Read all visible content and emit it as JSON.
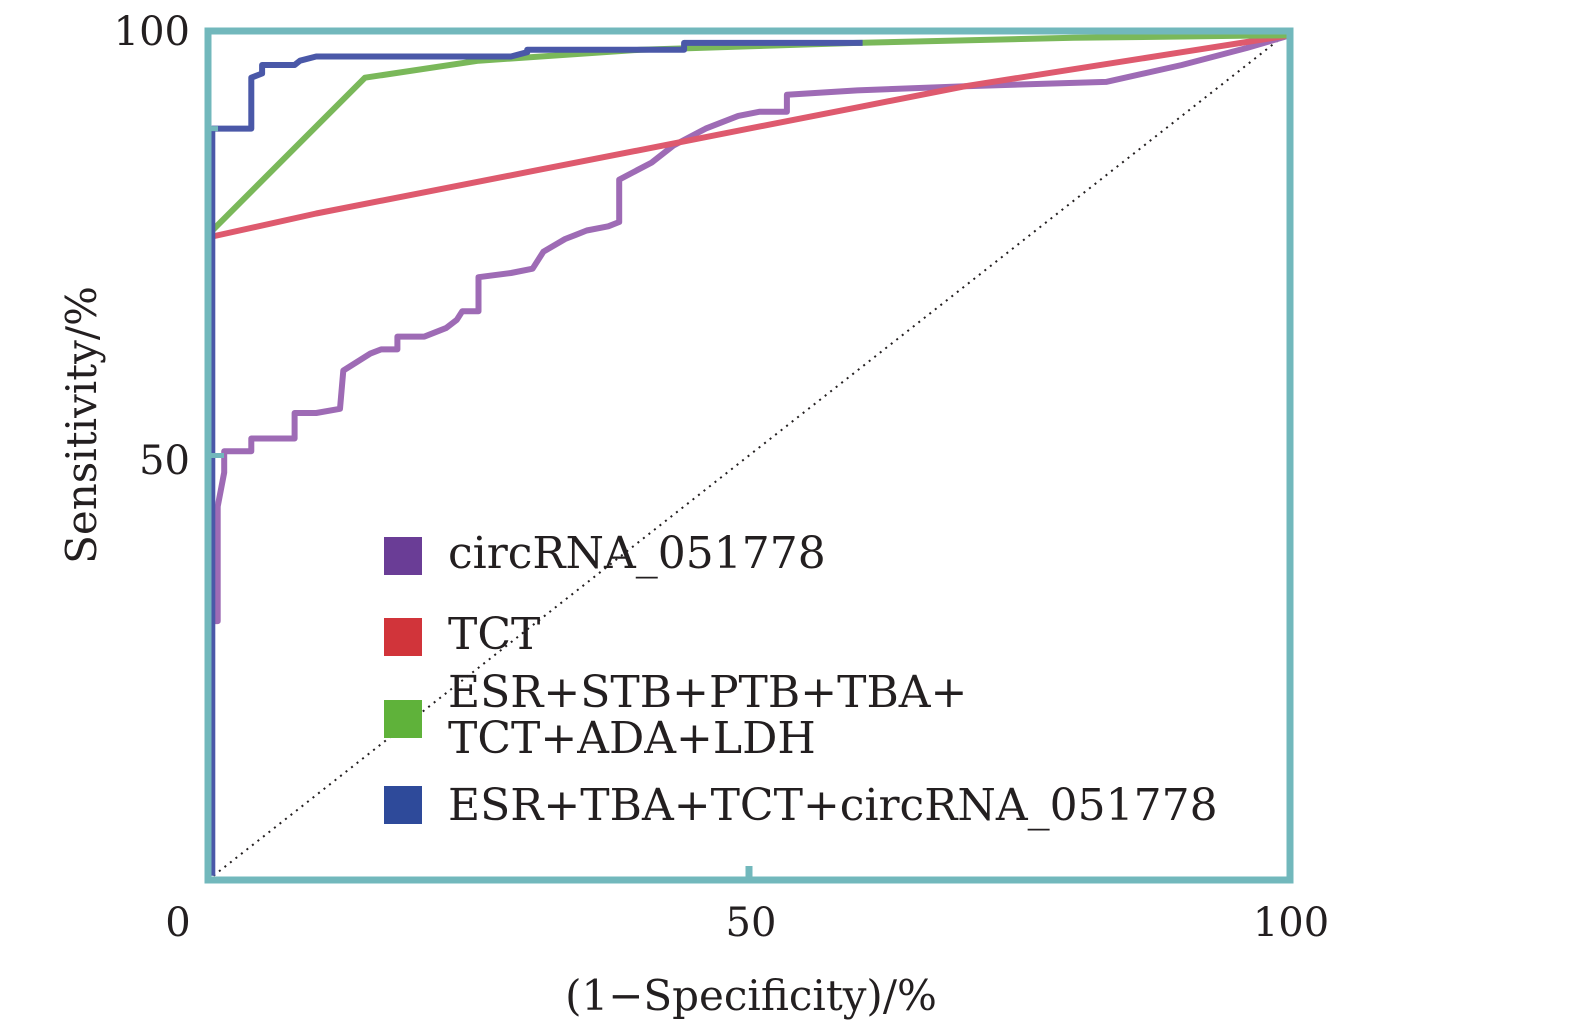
{
  "chart_data": {
    "type": "line",
    "title": "",
    "xlabel": "(1−Specificity)/%",
    "ylabel": "Sensitivity/%",
    "xlim": [
      0,
      100
    ],
    "ylim": [
      0,
      100
    ],
    "x_ticks": [
      "0",
      "50",
      "100"
    ],
    "y_ticks": [
      "50",
      "100"
    ],
    "grid": false,
    "legend_position": "center",
    "frame_color": "#72b8bc",
    "diagonal": {
      "x": [
        0,
        100
      ],
      "y": [
        0,
        100
      ],
      "style": "dotted",
      "color": "#231f20"
    },
    "series": [
      {
        "name": "circRNA_051778",
        "color": "#9e6bb5",
        "legend_color": "#6a3d96",
        "x": [
          0.4,
          0.9,
          0.9,
          1.5,
          1.5,
          2.5,
          4.0,
          4.0,
          8.0,
          8.0,
          10.0,
          12.2,
          12.5,
          15.0,
          16.0,
          17.0,
          17.5,
          17.5,
          20.0,
          22.0,
          23.0,
          23.5,
          23.5,
          25.0,
          25.0,
          28.0,
          30.0,
          31.0,
          33.0,
          34.0,
          35.0,
          37.0,
          38.0,
          38.0,
          39.5,
          41.0,
          43.0,
          46.0,
          49.0,
          51.0,
          53.5,
          53.5,
          60.0,
          70.0,
          83.0,
          90.0,
          96.0,
          100.0
        ],
        "y": [
          30.5,
          30.5,
          44.0,
          48.0,
          50.5,
          50.5,
          50.5,
          52.0,
          52.0,
          55.0,
          55.0,
          55.5,
          60.0,
          62.0,
          62.5,
          62.5,
          62.5,
          64.0,
          64.0,
          65.0,
          66.0,
          67.0,
          67.0,
          67.0,
          71.0,
          71.5,
          72.0,
          74.0,
          75.5,
          76.0,
          76.5,
          77.0,
          77.5,
          82.5,
          83.5,
          84.5,
          86.5,
          88.5,
          90.0,
          90.5,
          90.5,
          92.5,
          93.0,
          93.5,
          94.0,
          96.0,
          98.0,
          99.5
        ]
      },
      {
        "name": "TCT",
        "color": "#de5a6e",
        "legend_color": "#d1343a",
        "x": [
          0.4,
          10.0,
          20.0,
          30.0,
          40.0,
          50.0,
          60.0,
          70.0,
          80.0,
          90.0,
          100.0
        ],
        "y": [
          75.8,
          78.5,
          81.0,
          83.5,
          86.0,
          88.5,
          91.0,
          93.5,
          95.5,
          97.5,
          99.5
        ]
      },
      {
        "name": "ESR+STB+PTB+TBA+\nTCT+ADA+LDH",
        "color": "#7ab85a",
        "legend_color": "#5fb23a",
        "x": [
          0.4,
          14.5,
          25.0,
          40.0,
          60.0,
          80.0,
          100.0
        ],
        "y": [
          76.5,
          94.5,
          96.5,
          97.8,
          98.6,
          99.2,
          99.5
        ]
      },
      {
        "name": "ESR+TBA+TCT+circRNA_051778",
        "color": "#4a58a8",
        "legend_color": "#2e4a9a",
        "x": [
          0.4,
          0.4,
          0.4,
          4.0,
          4.0,
          5.0,
          5.0,
          8.0,
          8.5,
          10.0,
          28.0,
          29.5,
          29.5,
          44.0,
          44.0,
          60.5
        ],
        "y": [
          0.5,
          50.5,
          88.5,
          88.5,
          94.5,
          95.0,
          96.0,
          96.0,
          96.5,
          97.0,
          97.0,
          97.5,
          97.8,
          97.8,
          98.6,
          98.6
        ]
      }
    ]
  }
}
